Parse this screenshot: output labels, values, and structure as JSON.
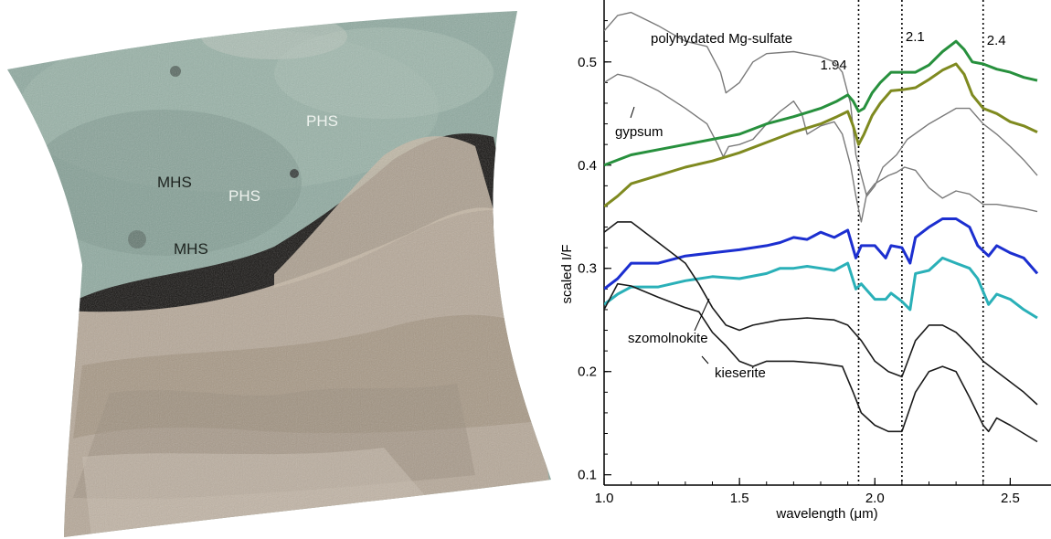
{
  "image_panel": {
    "labels": [
      "PHS",
      "MHS",
      "PHS",
      "MHS"
    ],
    "colors": {
      "teal_terrain": "#8faaa0",
      "dark_band": "#141210",
      "rock": "#b6a898",
      "label": "#1e2420",
      "label_light": "#eef2ee"
    }
  },
  "chart_data": {
    "type": "line",
    "title": "",
    "xlabel": "wavelength (μm)",
    "ylabel": "scaled I/F",
    "xlim": [
      1.0,
      2.6
    ],
    "ylim": [
      0.09,
      0.56
    ],
    "xticks": [
      "1.0",
      "1.5",
      "2.0",
      "2.5"
    ],
    "yticks": [
      "0.1",
      "0.2",
      "0.3",
      "0.4",
      "0.5"
    ],
    "xtick_values": [
      1.0,
      1.5,
      2.0,
      2.5
    ],
    "ytick_values": [
      0.1,
      0.2,
      0.3,
      0.4,
      0.5
    ],
    "grid": false,
    "vlines": [
      {
        "x": 1.94,
        "label": "1.94"
      },
      {
        "x": 2.1,
        "label": "2.1"
      },
      {
        "x": 2.4,
        "label": "2.4"
      }
    ],
    "annotations": [
      "polyhydated Mg-sulfate",
      "gypsum",
      "szomolnokite",
      "kieserite"
    ],
    "series": [
      {
        "color": "#7a7a7a",
        "width": 1.4,
        "label": "polyhydated Mg-sulfate",
        "points": [
          [
            1.0,
            0.53
          ],
          [
            1.05,
            0.545
          ],
          [
            1.1,
            0.548
          ],
          [
            1.2,
            0.535
          ],
          [
            1.3,
            0.52
          ],
          [
            1.38,
            0.515
          ],
          [
            1.43,
            0.49
          ],
          [
            1.45,
            0.47
          ],
          [
            1.5,
            0.48
          ],
          [
            1.55,
            0.5
          ],
          [
            1.6,
            0.508
          ],
          [
            1.7,
            0.51
          ],
          [
            1.8,
            0.505
          ],
          [
            1.85,
            0.5
          ],
          [
            1.88,
            0.49
          ],
          [
            1.91,
            0.46
          ],
          [
            1.93,
            0.41
          ],
          [
            1.95,
            0.39
          ],
          [
            1.97,
            0.37
          ],
          [
            2.0,
            0.38
          ],
          [
            2.03,
            0.398
          ],
          [
            2.08,
            0.41
          ],
          [
            2.12,
            0.425
          ],
          [
            2.2,
            0.44
          ],
          [
            2.3,
            0.455
          ],
          [
            2.35,
            0.455
          ],
          [
            2.4,
            0.44
          ],
          [
            2.45,
            0.43
          ],
          [
            2.5,
            0.418
          ],
          [
            2.55,
            0.405
          ],
          [
            2.6,
            0.39
          ]
        ]
      },
      {
        "color": "#7a7a7a",
        "width": 1.4,
        "label": "gypsum",
        "points": [
          [
            1.0,
            0.48
          ],
          [
            1.05,
            0.488
          ],
          [
            1.1,
            0.485
          ],
          [
            1.2,
            0.472
          ],
          [
            1.3,
            0.455
          ],
          [
            1.38,
            0.44
          ],
          [
            1.42,
            0.42
          ],
          [
            1.44,
            0.408
          ],
          [
            1.46,
            0.418
          ],
          [
            1.5,
            0.42
          ],
          [
            1.55,
            0.425
          ],
          [
            1.6,
            0.44
          ],
          [
            1.65,
            0.452
          ],
          [
            1.7,
            0.462
          ],
          [
            1.73,
            0.45
          ],
          [
            1.75,
            0.43
          ],
          [
            1.8,
            0.438
          ],
          [
            1.85,
            0.442
          ],
          [
            1.88,
            0.43
          ],
          [
            1.91,
            0.4
          ],
          [
            1.93,
            0.37
          ],
          [
            1.95,
            0.345
          ],
          [
            1.97,
            0.372
          ],
          [
            2.0,
            0.382
          ],
          [
            2.05,
            0.39
          ],
          [
            2.08,
            0.393
          ],
          [
            2.11,
            0.398
          ],
          [
            2.15,
            0.395
          ],
          [
            2.2,
            0.378
          ],
          [
            2.25,
            0.368
          ],
          [
            2.3,
            0.375
          ],
          [
            2.35,
            0.372
          ],
          [
            2.4,
            0.362
          ],
          [
            2.45,
            0.362
          ],
          [
            2.5,
            0.36
          ],
          [
            2.55,
            0.358
          ],
          [
            2.6,
            0.355
          ]
        ]
      },
      {
        "color": "#27903d",
        "width": 3.0,
        "points": [
          [
            1.0,
            0.4
          ],
          [
            1.05,
            0.405
          ],
          [
            1.1,
            0.41
          ],
          [
            1.2,
            0.415
          ],
          [
            1.3,
            0.42
          ],
          [
            1.4,
            0.425
          ],
          [
            1.5,
            0.43
          ],
          [
            1.6,
            0.44
          ],
          [
            1.7,
            0.447
          ],
          [
            1.8,
            0.455
          ],
          [
            1.86,
            0.462
          ],
          [
            1.9,
            0.468
          ],
          [
            1.92,
            0.462
          ],
          [
            1.94,
            0.452
          ],
          [
            1.96,
            0.455
          ],
          [
            1.99,
            0.47
          ],
          [
            2.02,
            0.48
          ],
          [
            2.06,
            0.49
          ],
          [
            2.1,
            0.49
          ],
          [
            2.15,
            0.49
          ],
          [
            2.2,
            0.497
          ],
          [
            2.25,
            0.51
          ],
          [
            2.3,
            0.52
          ],
          [
            2.33,
            0.512
          ],
          [
            2.36,
            0.5
          ],
          [
            2.4,
            0.498
          ],
          [
            2.45,
            0.493
          ],
          [
            2.5,
            0.49
          ],
          [
            2.55,
            0.485
          ],
          [
            2.6,
            0.482
          ]
        ]
      },
      {
        "color": "#7f8a20",
        "width": 3.0,
        "points": [
          [
            1.0,
            0.36
          ],
          [
            1.05,
            0.37
          ],
          [
            1.1,
            0.382
          ],
          [
            1.2,
            0.39
          ],
          [
            1.3,
            0.398
          ],
          [
            1.4,
            0.404
          ],
          [
            1.5,
            0.412
          ],
          [
            1.6,
            0.422
          ],
          [
            1.7,
            0.432
          ],
          [
            1.8,
            0.44
          ],
          [
            1.86,
            0.447
          ],
          [
            1.9,
            0.452
          ],
          [
            1.92,
            0.438
          ],
          [
            1.94,
            0.42
          ],
          [
            1.96,
            0.43
          ],
          [
            1.99,
            0.448
          ],
          [
            2.02,
            0.46
          ],
          [
            2.06,
            0.472
          ],
          [
            2.1,
            0.473
          ],
          [
            2.15,
            0.475
          ],
          [
            2.2,
            0.483
          ],
          [
            2.25,
            0.492
          ],
          [
            2.3,
            0.498
          ],
          [
            2.33,
            0.488
          ],
          [
            2.36,
            0.468
          ],
          [
            2.4,
            0.455
          ],
          [
            2.45,
            0.45
          ],
          [
            2.5,
            0.442
          ],
          [
            2.55,
            0.438
          ],
          [
            2.6,
            0.432
          ]
        ]
      },
      {
        "color": "#1c2fd0",
        "width": 3.0,
        "points": [
          [
            1.0,
            0.28
          ],
          [
            1.05,
            0.29
          ],
          [
            1.1,
            0.305
          ],
          [
            1.2,
            0.305
          ],
          [
            1.3,
            0.312
          ],
          [
            1.4,
            0.315
          ],
          [
            1.5,
            0.318
          ],
          [
            1.6,
            0.322
          ],
          [
            1.65,
            0.325
          ],
          [
            1.7,
            0.33
          ],
          [
            1.75,
            0.328
          ],
          [
            1.8,
            0.335
          ],
          [
            1.85,
            0.33
          ],
          [
            1.9,
            0.337
          ],
          [
            1.93,
            0.31
          ],
          [
            1.95,
            0.322
          ],
          [
            2.0,
            0.322
          ],
          [
            2.04,
            0.31
          ],
          [
            2.06,
            0.322
          ],
          [
            2.1,
            0.32
          ],
          [
            2.13,
            0.305
          ],
          [
            2.15,
            0.33
          ],
          [
            2.2,
            0.34
          ],
          [
            2.25,
            0.348
          ],
          [
            2.3,
            0.348
          ],
          [
            2.35,
            0.34
          ],
          [
            2.38,
            0.322
          ],
          [
            2.42,
            0.312
          ],
          [
            2.45,
            0.322
          ],
          [
            2.5,
            0.315
          ],
          [
            2.55,
            0.31
          ],
          [
            2.6,
            0.295
          ]
        ]
      },
      {
        "color": "#2ab0b8",
        "width": 3.0,
        "points": [
          [
            1.0,
            0.265
          ],
          [
            1.05,
            0.275
          ],
          [
            1.1,
            0.282
          ],
          [
            1.2,
            0.282
          ],
          [
            1.3,
            0.288
          ],
          [
            1.4,
            0.292
          ],
          [
            1.5,
            0.29
          ],
          [
            1.6,
            0.295
          ],
          [
            1.65,
            0.3
          ],
          [
            1.7,
            0.3
          ],
          [
            1.75,
            0.302
          ],
          [
            1.8,
            0.3
          ],
          [
            1.85,
            0.298
          ],
          [
            1.9,
            0.305
          ],
          [
            1.93,
            0.28
          ],
          [
            1.95,
            0.285
          ],
          [
            2.0,
            0.27
          ],
          [
            2.04,
            0.27
          ],
          [
            2.06,
            0.276
          ],
          [
            2.1,
            0.268
          ],
          [
            2.13,
            0.26
          ],
          [
            2.15,
            0.295
          ],
          [
            2.2,
            0.298
          ],
          [
            2.25,
            0.31
          ],
          [
            2.3,
            0.305
          ],
          [
            2.35,
            0.3
          ],
          [
            2.38,
            0.29
          ],
          [
            2.42,
            0.265
          ],
          [
            2.45,
            0.275
          ],
          [
            2.5,
            0.27
          ],
          [
            2.55,
            0.26
          ],
          [
            2.6,
            0.252
          ]
        ]
      },
      {
        "color": "#1a1a1a",
        "width": 1.6,
        "label": "szomolnokite",
        "points": [
          [
            1.0,
            0.335
          ],
          [
            1.05,
            0.345
          ],
          [
            1.1,
            0.345
          ],
          [
            1.2,
            0.325
          ],
          [
            1.3,
            0.305
          ],
          [
            1.35,
            0.285
          ],
          [
            1.4,
            0.262
          ],
          [
            1.45,
            0.245
          ],
          [
            1.5,
            0.24
          ],
          [
            1.55,
            0.245
          ],
          [
            1.65,
            0.25
          ],
          [
            1.75,
            0.252
          ],
          [
            1.85,
            0.25
          ],
          [
            1.9,
            0.245
          ],
          [
            1.95,
            0.23
          ],
          [
            2.0,
            0.21
          ],
          [
            2.05,
            0.2
          ],
          [
            2.1,
            0.195
          ],
          [
            2.15,
            0.23
          ],
          [
            2.2,
            0.245
          ],
          [
            2.25,
            0.245
          ],
          [
            2.3,
            0.238
          ],
          [
            2.35,
            0.225
          ],
          [
            2.4,
            0.21
          ],
          [
            2.45,
            0.2
          ],
          [
            2.5,
            0.19
          ],
          [
            2.55,
            0.18
          ],
          [
            2.6,
            0.168
          ]
        ]
      },
      {
        "color": "#1a1a1a",
        "width": 1.6,
        "label": "kieserite",
        "points": [
          [
            1.0,
            0.26
          ],
          [
            1.05,
            0.285
          ],
          [
            1.1,
            0.283
          ],
          [
            1.2,
            0.272
          ],
          [
            1.3,
            0.262
          ],
          [
            1.35,
            0.258
          ],
          [
            1.4,
            0.238
          ],
          [
            1.45,
            0.225
          ],
          [
            1.5,
            0.21
          ],
          [
            1.55,
            0.205
          ],
          [
            1.6,
            0.21
          ],
          [
            1.7,
            0.21
          ],
          [
            1.8,
            0.208
          ],
          [
            1.88,
            0.205
          ],
          [
            1.92,
            0.18
          ],
          [
            1.95,
            0.16
          ],
          [
            2.0,
            0.148
          ],
          [
            2.05,
            0.142
          ],
          [
            2.1,
            0.142
          ],
          [
            2.15,
            0.18
          ],
          [
            2.2,
            0.2
          ],
          [
            2.25,
            0.205
          ],
          [
            2.3,
            0.2
          ],
          [
            2.35,
            0.175
          ],
          [
            2.4,
            0.148
          ],
          [
            2.42,
            0.142
          ],
          [
            2.45,
            0.155
          ],
          [
            2.5,
            0.148
          ],
          [
            2.55,
            0.14
          ],
          [
            2.6,
            0.132
          ]
        ]
      }
    ]
  }
}
